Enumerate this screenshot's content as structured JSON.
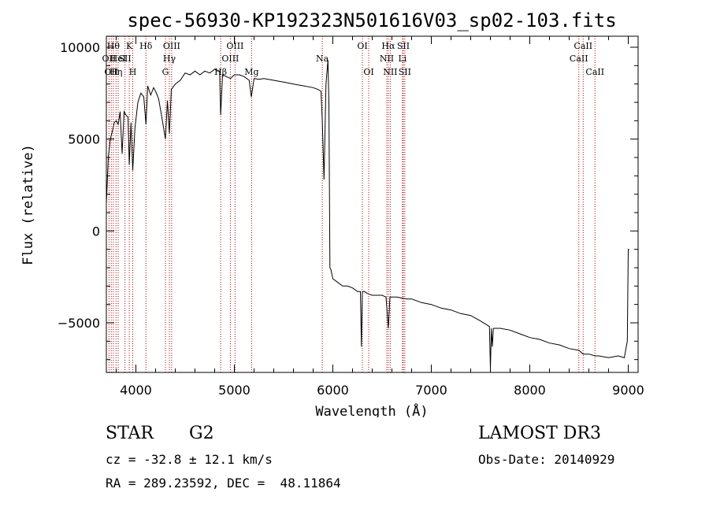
{
  "chart_data": {
    "type": "line",
    "title": "spec-56930-KP192323N501616V03_sp02-103.fits",
    "xlabel": "Wavelength (Å)",
    "ylabel": "Flux (relative)",
    "xlim": [
      3700,
      9100
    ],
    "ylim": [
      -7700,
      10600
    ],
    "xticks": [
      4000,
      5000,
      6000,
      7000,
      8000,
      9000
    ],
    "yticks": [
      -5000,
      0,
      5000,
      10000
    ],
    "series": [
      {
        "name": "flux",
        "x": [
          3700,
          3720,
          3740,
          3760,
          3780,
          3800,
          3820,
          3840,
          3860,
          3880,
          3900,
          3920,
          3933,
          3950,
          3968,
          3990,
          4020,
          4050,
          4080,
          4102,
          4120,
          4150,
          4180,
          4200,
          4230,
          4260,
          4300,
          4320,
          4340,
          4360,
          4400,
          4450,
          4500,
          4550,
          4600,
          4650,
          4700,
          4750,
          4800,
          4850,
          4861,
          4880,
          4920,
          4960,
          5000,
          5050,
          5100,
          5150,
          5172,
          5200,
          5250,
          5300,
          5400,
          5500,
          5600,
          5700,
          5800,
          5850,
          5880,
          5893,
          5900,
          5910,
          5930,
          5950,
          5960,
          5970,
          5980,
          6000,
          6050,
          6100,
          6150,
          6200,
          6250,
          6280,
          6290,
          6300,
          6320,
          6350,
          6400,
          6450,
          6500,
          6540,
          6563,
          6580,
          6600,
          6650,
          6700,
          6750,
          6800,
          6900,
          7000,
          7100,
          7200,
          7300,
          7400,
          7500,
          7590,
          7600,
          7610,
          7620,
          7630,
          7650,
          7700,
          7800,
          7900,
          8000,
          8100,
          8200,
          8300,
          8400,
          8500,
          8542,
          8600,
          8662,
          8700,
          8800,
          8900,
          8960,
          8990,
          9000,
          9010
        ],
        "y": [
          1500,
          4000,
          5000,
          5400,
          5900,
          6000,
          5800,
          6500,
          4200,
          6500,
          6300,
          6200,
          3600,
          5900,
          3300,
          5600,
          7000,
          7500,
          7300,
          5800,
          7900,
          7400,
          7800,
          7600,
          7200,
          6300,
          5000,
          7100,
          5300,
          7700,
          8000,
          8200,
          8600,
          8500,
          8700,
          8500,
          8700,
          8600,
          8800,
          8700,
          6300,
          8500,
          8400,
          8300,
          8500,
          8500,
          8400,
          8200,
          7300,
          8300,
          8250,
          8300,
          8200,
          8100,
          8000,
          7900,
          7800,
          7700,
          7600,
          6000,
          4700,
          2800,
          8000,
          9300,
          7000,
          -2000,
          -2100,
          -2600,
          -2800,
          -3000,
          -3000,
          -3100,
          -3300,
          -3300,
          -6300,
          -3300,
          -3300,
          -3400,
          -3500,
          -3500,
          -3500,
          -3600,
          -5300,
          -3600,
          -3600,
          -3600,
          -3650,
          -3700,
          -3700,
          -3900,
          -4000,
          -4200,
          -4300,
          -4500,
          -4600,
          -4900,
          -5200,
          -7500,
          -5300,
          -6300,
          -5300,
          -5300,
          -5300,
          -5400,
          -5600,
          -5800,
          -5900,
          -6100,
          -6200,
          -6400,
          -6500,
          -6700,
          -6700,
          -6800,
          -6800,
          -6900,
          -6800,
          -6900,
          -6000,
          -1000,
          -1000
        ]
      }
    ],
    "lines": [
      {
        "wave": 3727,
        "label": "OII",
        "row": 2
      },
      {
        "wave": 3750,
        "label": "OII",
        "row": 3
      },
      {
        "wave": 3771,
        "label": "Hθ",
        "row": 1
      },
      {
        "wave": 3798,
        "label": "Hη",
        "row": 3
      },
      {
        "wave": 3820,
        "label": "HeI",
        "row": 2
      },
      {
        "wave": 3889,
        "label": "SII",
        "row": 2
      },
      {
        "wave": 3933,
        "label": "K",
        "row": 1
      },
      {
        "wave": 3968,
        "label": "H",
        "row": 3
      },
      {
        "wave": 4102,
        "label": "Hδ",
        "row": 1
      },
      {
        "wave": 4300,
        "label": "G",
        "row": 3
      },
      {
        "wave": 4340,
        "label": "Hγ",
        "row": 2
      },
      {
        "wave": 4363,
        "label": "OIII",
        "row": 1
      },
      {
        "wave": 4861,
        "label": "Hβ",
        "row": 3
      },
      {
        "wave": 4959,
        "label": "OIII",
        "row": 2
      },
      {
        "wave": 5007,
        "label": "OIII",
        "row": 1
      },
      {
        "wave": 5175,
        "label": "Mg",
        "row": 3
      },
      {
        "wave": 5893,
        "label": "Na",
        "row": 2
      },
      {
        "wave": 6300,
        "label": "OI",
        "row": 1
      },
      {
        "wave": 6364,
        "label": "OI",
        "row": 3
      },
      {
        "wave": 6548,
        "label": "NII",
        "row": 2
      },
      {
        "wave": 6563,
        "label": "Hα",
        "row": 1
      },
      {
        "wave": 6583,
        "label": "NII",
        "row": 3
      },
      {
        "wave": 6707,
        "label": "Li",
        "row": 2
      },
      {
        "wave": 6716,
        "label": "SII",
        "row": 1
      },
      {
        "wave": 6731,
        "label": "SII",
        "row": 3
      },
      {
        "wave": 8498,
        "label": "CaII",
        "row": 2
      },
      {
        "wave": 8542,
        "label": "CaII",
        "row": 1
      },
      {
        "wave": 8662,
        "label": "CaII",
        "row": 3
      }
    ]
  },
  "info": {
    "class_label": "STAR",
    "subclass": "G2",
    "survey": "LAMOST DR3",
    "cz": "cz = -32.8 ± 12.1 km/s",
    "obs_date": "Obs-Date: 20140929",
    "radec": "RA = 289.23592, DEC =  48.11864"
  },
  "colors": {
    "line_marker": "#b00000",
    "spectrum": "#000000"
  }
}
